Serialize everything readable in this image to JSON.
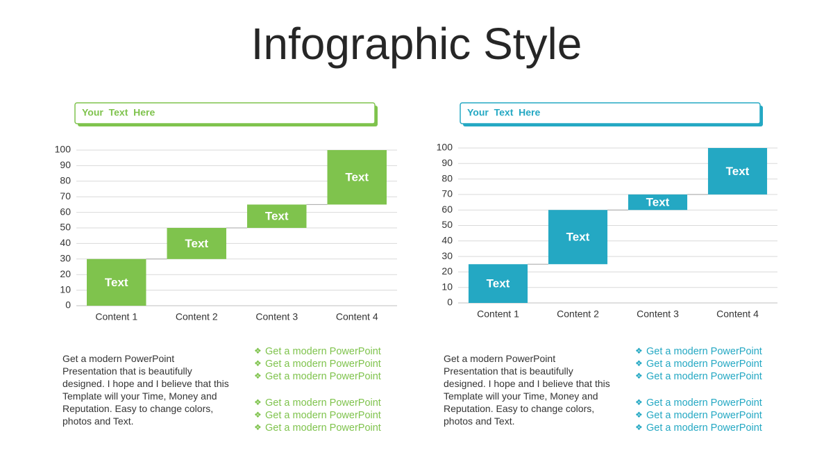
{
  "title": "Infographic Style",
  "panels": [
    {
      "header": "Your  Text  Here",
      "paragraph": "Get a modern PowerPoint Presentation that is beautifully designed. I hope and I believe that this Template will your Time, Money and Reputation. Easy to change colors, photos and Text.",
      "bullets": [
        [
          "Get a modern PowerPoint",
          "Get a modern PowerPoint",
          "Get a modern PowerPoint"
        ],
        [
          "Get a modern PowerPoint",
          "Get a modern PowerPoint",
          "Get a modern PowerPoint"
        ]
      ]
    },
    {
      "header": "Your  Text  Here",
      "paragraph": "Get a modern PowerPoint Presentation that is beautifully designed. I hope and I believe that this Template will your Time, Money and Reputation. Easy to change colors, photos and Text.",
      "bullets": [
        [
          "Get a modern PowerPoint",
          "Get a modern PowerPoint",
          "Get a modern PowerPoint"
        ],
        [
          "Get a modern PowerPoint",
          "Get a modern PowerPoint",
          "Get a modern PowerPoint"
        ]
      ]
    }
  ],
  "chart_data": [
    {
      "type": "waterfall",
      "categories": [
        "Content 1",
        "Content 2",
        "Content 3",
        "Content 4"
      ],
      "values": [
        30,
        20,
        15,
        35
      ],
      "bar_labels": [
        "Text",
        "Text",
        "Text",
        "Text"
      ],
      "color": "#7fc34d",
      "ylim": [
        0,
        100
      ],
      "yticks": [
        0,
        10,
        20,
        30,
        40,
        50,
        60,
        70,
        80,
        90,
        100
      ],
      "grid": true
    },
    {
      "type": "waterfall",
      "categories": [
        "Content 1",
        "Content 2",
        "Content 3",
        "Content 4"
      ],
      "values": [
        25,
        35,
        10,
        30
      ],
      "bar_labels": [
        "Text",
        "Text",
        "Text",
        "Text"
      ],
      "color": "#24a8c3",
      "ylim": [
        0,
        100
      ],
      "yticks": [
        0,
        10,
        20,
        30,
        40,
        50,
        60,
        70,
        80,
        90,
        100
      ],
      "grid": true
    }
  ]
}
